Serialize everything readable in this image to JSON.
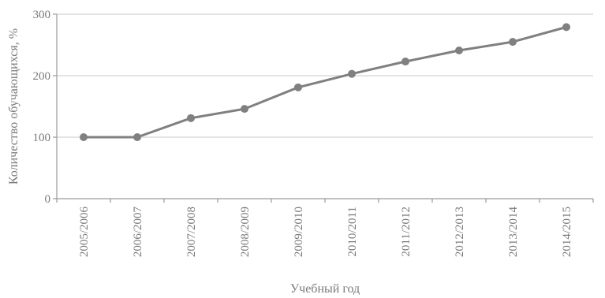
{
  "chart_data": {
    "type": "line",
    "title": "",
    "xlabel": "Учебный год",
    "ylabel": "Количество обучающихся, %",
    "categories": [
      "2005/2006",
      "2006/2007",
      "2007/2008",
      "2008/2009",
      "2009/2010",
      "2010/2011",
      "2011/2012",
      "2012/2013",
      "2013/2014",
      "2014/2015"
    ],
    "series": [
      {
        "values": [
          100,
          100,
          131,
          146,
          181,
          203,
          223,
          241,
          255,
          279
        ]
      }
    ],
    "ylim": [
      0,
      300
    ],
    "yticks": [
      0,
      100,
      200,
      300
    ],
    "ytick_labels": [
      "0",
      "100",
      "200",
      "300"
    ],
    "grid": true,
    "legend": "none",
    "colors": {
      "series": "#808080",
      "grid": "#c8c8c8",
      "axis": "#9a9a9a",
      "text": "#7a7a7a"
    }
  }
}
